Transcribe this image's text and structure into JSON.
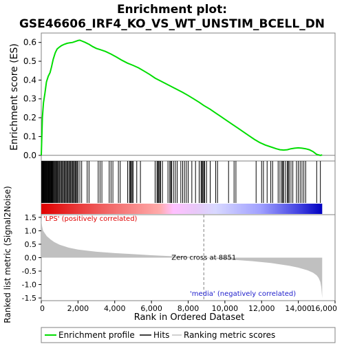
{
  "chart_data": {
    "type": "line",
    "title_line1": "Enrichment plot:",
    "title_line2": "GSE46606_IRF4_KO_VS_WT_UNSTIM_BCELL_DN",
    "es_panel": {
      "ylabel": "Enrichment score (ES)",
      "ylim": [
        -0.03,
        0.65
      ],
      "yticks": [
        "0.0",
        "0.1",
        "0.2",
        "0.3",
        "0.4",
        "0.5",
        "0.6"
      ],
      "ytick_values": [
        0.0,
        0.1,
        0.2,
        0.3,
        0.4,
        0.5,
        0.6
      ],
      "series": [
        {
          "name": "Enrichment profile",
          "color": "#00dd00",
          "x": [
            0,
            60,
            120,
            200,
            280,
            380,
            480,
            560,
            650,
            760,
            860,
            980,
            1100,
            1250,
            1400,
            1550,
            1700,
            1850,
            2000,
            2100,
            2200,
            2400,
            2600,
            2800,
            3000,
            3200,
            3500,
            3800,
            4100,
            4400,
            4700,
            5000,
            5300,
            5600,
            5900,
            6200,
            6500,
            6800,
            7100,
            7400,
            7700,
            8000,
            8300,
            8600,
            8851,
            9200,
            9500,
            9800,
            10100,
            10400,
            10700,
            11000,
            11300,
            11600,
            11900,
            12200,
            12500,
            12800,
            13000,
            13200,
            13400,
            13600,
            13800,
            14000,
            14200,
            14400,
            14600,
            14800,
            15000,
            15200,
            15300
          ],
          "y": [
            0.0,
            0.2,
            0.28,
            0.33,
            0.39,
            0.42,
            0.44,
            0.47,
            0.51,
            0.545,
            0.565,
            0.575,
            0.583,
            0.59,
            0.595,
            0.598,
            0.6,
            0.605,
            0.61,
            0.612,
            0.608,
            0.6,
            0.59,
            0.578,
            0.568,
            0.562,
            0.552,
            0.538,
            0.522,
            0.505,
            0.49,
            0.478,
            0.465,
            0.448,
            0.43,
            0.41,
            0.395,
            0.38,
            0.365,
            0.35,
            0.335,
            0.318,
            0.3,
            0.282,
            0.265,
            0.245,
            0.225,
            0.205,
            0.185,
            0.165,
            0.145,
            0.125,
            0.105,
            0.085,
            0.068,
            0.055,
            0.045,
            0.035,
            0.03,
            0.028,
            0.03,
            0.035,
            0.038,
            0.04,
            0.038,
            0.035,
            0.03,
            0.02,
            0.005,
            0.0,
            0.002
          ]
        }
      ]
    },
    "hits_panel": {
      "hit_positions": [
        20,
        40,
        60,
        80,
        100,
        120,
        150,
        170,
        200,
        230,
        260,
        290,
        320,
        350,
        380,
        410,
        440,
        470,
        500,
        530,
        560,
        590,
        620,
        660,
        700,
        740,
        780,
        820,
        860,
        900,
        950,
        1000,
        1050,
        1100,
        1150,
        1200,
        1250,
        1300,
        1350,
        1400,
        1450,
        1500,
        1550,
        1600,
        1650,
        1700,
        1750,
        1800,
        1850,
        1900,
        1950,
        2000,
        2100,
        2200,
        2500,
        2600,
        3100,
        3200,
        3300,
        3700,
        3800,
        3900,
        4200,
        4300,
        4700,
        4800,
        4850,
        4900,
        4950,
        5000,
        5200,
        5400,
        6200,
        6300,
        6350,
        6400,
        6450,
        6500,
        6600,
        6900,
        7000,
        7050,
        7100,
        7200,
        7300,
        7400,
        7600,
        7700,
        7800,
        7900,
        8000,
        8200,
        8400,
        8600,
        8700,
        8750,
        8800,
        8850,
        8900,
        9000,
        9200,
        9500,
        9600,
        10200,
        10500,
        10600,
        11700,
        12000,
        12100,
        12300,
        12500,
        12600,
        12900,
        13000,
        13100,
        13150,
        13200,
        13300,
        13400,
        13450,
        13500,
        13600,
        13700,
        13900,
        14000,
        14100,
        14200,
        14300,
        14400,
        15000,
        15200
      ]
    },
    "metric_panel": {
      "ylabel": "Ranked list metric (Signal2Noise)",
      "ylim": [
        -1.6,
        1.6
      ],
      "yticks": [
        "1.5",
        "1.0",
        "0.5",
        "0.0",
        "-0.5",
        "-1.0",
        "-1.5"
      ],
      "ytick_values": [
        1.5,
        1.0,
        0.5,
        0.0,
        -0.5,
        -1.0,
        -1.5
      ],
      "fill_color": "#c0c0c0",
      "x": [
        0,
        20,
        50,
        100,
        200,
        300,
        500,
        700,
        1000,
        1500,
        2000,
        3000,
        4000,
        5000,
        6000,
        7000,
        8000,
        8851,
        9500,
        10500,
        11500,
        12500,
        13000,
        13500,
        14000,
        14500,
        14800,
        15000,
        15100,
        15200,
        15250,
        15300
      ],
      "y": [
        1.5,
        1.3,
        1.15,
        1.0,
        0.9,
        0.8,
        0.68,
        0.58,
        0.48,
        0.37,
        0.3,
        0.22,
        0.17,
        0.13,
        0.09,
        0.06,
        0.03,
        0.0,
        -0.04,
        -0.08,
        -0.13,
        -0.2,
        -0.25,
        -0.3,
        -0.37,
        -0.47,
        -0.56,
        -0.66,
        -0.75,
        -0.9,
        -1.1,
        -1.5
      ],
      "zero_cross_label": "Zero cross at 8851",
      "zero_cross_x": 8851,
      "positive_label": "'LPS' (positively correlated)",
      "negative_label": "'media' (negatively correlated)"
    },
    "xaxis": {
      "xlabel": "Rank in Ordered Dataset",
      "xlim": [
        0,
        16000
      ],
      "xticks": [
        "0",
        "2,000",
        "4,000",
        "6,000",
        "8,000",
        "10,000",
        "12,000",
        "14,000",
        "16,000"
      ],
      "xtick_values": [
        0,
        2000,
        4000,
        6000,
        8000,
        10000,
        12000,
        14000,
        16000
      ],
      "n_genes": 15300
    },
    "legend": {
      "placement": "bottom",
      "entries": [
        {
          "label": "Enrichment profile",
          "color": "#00dd00"
        },
        {
          "label": "Hits",
          "color": "#000000"
        },
        {
          "label": "Ranking metric scores",
          "color": "#c0c0c0"
        }
      ]
    }
  }
}
